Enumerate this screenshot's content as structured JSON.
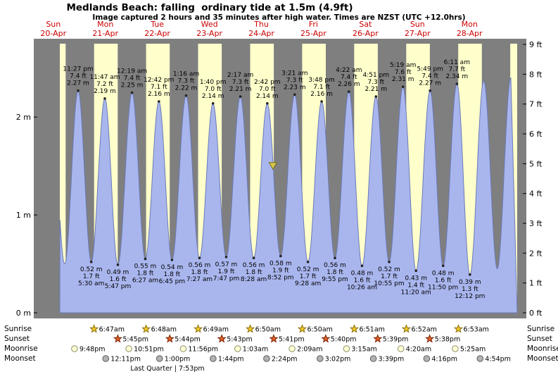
{
  "header": {
    "title": "Medlands Beach: falling  ordinary tide at 1.5m (4.9ft)",
    "subtitle": "Image captured 2 hours and 35 minutes after high water. Times are NZST (UTC +12.0hrs)"
  },
  "days": [
    {
      "dow": "Sun",
      "date": "20-Apr"
    },
    {
      "dow": "Mon",
      "date": "21-Apr"
    },
    {
      "dow": "Tue",
      "date": "22-Apr"
    },
    {
      "dow": "Wed",
      "date": "23-Apr"
    },
    {
      "dow": "Thu",
      "date": "24-Apr"
    },
    {
      "dow": "Fri",
      "date": "25-Apr"
    },
    {
      "dow": "Sat",
      "date": "26-Apr"
    },
    {
      "dow": "Sun",
      "date": "27-Apr"
    },
    {
      "dow": "Mon",
      "date": "28-Apr"
    }
  ],
  "axes": {
    "left": [
      "2 m",
      "1 m",
      "0 m"
    ],
    "right": [
      "9 ft",
      "8 ft",
      "7 ft",
      "6 ft",
      "5 ft",
      "4 ft",
      "3 ft",
      "2 ft",
      "1 ft",
      "0 ft"
    ]
  },
  "colors": {
    "day_band": "#ffffcc",
    "night_band": "#7f7f7f",
    "tide_fill": "#a9b6ee",
    "tide_stroke": "#6b7ab8",
    "day_label": "#cc0000",
    "marker": "#d8c546",
    "marker_edge": "#77701c"
  },
  "chart_data": {
    "type": "area",
    "title": "Medlands Beach tide curve, 20-Apr to 28-Apr",
    "x_unit": "time (NZST)",
    "y_left_label_unit": "m",
    "y_right_label_unit": "ft",
    "ylim_ft": [
      0,
      9
    ],
    "current_marker": {
      "day": 4,
      "time": "5:17 pm",
      "m": 1.5
    },
    "events": [
      {
        "type": "high",
        "day": 0,
        "time": "11:27 pm",
        "ft": 7.4,
        "m": 2.27
      },
      {
        "type": "low",
        "day": 1,
        "time": "5:30 am",
        "ft": 1.7,
        "m": 0.52
      },
      {
        "type": "high",
        "day": 1,
        "time": "11:47 am",
        "ft": 7.2,
        "m": 2.19
      },
      {
        "type": "low",
        "day": 1,
        "time": "5:47 pm",
        "ft": 1.6,
        "m": 0.49
      },
      {
        "type": "high",
        "day": 2,
        "time": "12:19 am",
        "ft": 7.4,
        "m": 2.25
      },
      {
        "type": "low",
        "day": 2,
        "time": "6:27 am",
        "ft": 1.8,
        "m": 0.55
      },
      {
        "type": "high",
        "day": 2,
        "time": "12:42 pm",
        "ft": 7.1,
        "m": 2.16
      },
      {
        "type": "low",
        "day": 2,
        "time": "6:45 pm",
        "ft": 1.8,
        "m": 0.54
      },
      {
        "type": "high",
        "day": 3,
        "time": "1:16 am",
        "ft": 7.3,
        "m": 2.22
      },
      {
        "type": "low",
        "day": 3,
        "time": "7:27 am",
        "ft": 1.8,
        "m": 0.56
      },
      {
        "type": "high",
        "day": 3,
        "time": "1:40 pm",
        "ft": 7.0,
        "m": 2.14
      },
      {
        "type": "low",
        "day": 3,
        "time": "7:47 pm",
        "ft": 1.9,
        "m": 0.57
      },
      {
        "type": "high",
        "day": 4,
        "time": "2:17 am",
        "ft": 7.3,
        "m": 2.21
      },
      {
        "type": "low",
        "day": 4,
        "time": "8:28 am",
        "ft": 1.8,
        "m": 0.56
      },
      {
        "type": "high",
        "day": 4,
        "time": "2:42 pm",
        "ft": 7.0,
        "m": 2.14
      },
      {
        "type": "low",
        "day": 4,
        "time": "8:52 pm",
        "ft": 1.9,
        "m": 0.58
      },
      {
        "type": "high",
        "day": 5,
        "time": "3:21 am",
        "ft": 7.3,
        "m": 2.23
      },
      {
        "type": "low",
        "day": 5,
        "time": "9:28 am",
        "ft": 1.7,
        "m": 0.52
      },
      {
        "type": "high",
        "day": 5,
        "time": "3:48 pm",
        "ft": 7.1,
        "m": 2.16
      },
      {
        "type": "low",
        "day": 5,
        "time": "9:55 pm",
        "ft": 1.8,
        "m": 0.56
      },
      {
        "type": "high",
        "day": 6,
        "time": "4:22 am",
        "ft": 7.4,
        "m": 2.26
      },
      {
        "type": "low",
        "day": 6,
        "time": "10:26 am",
        "ft": 1.6,
        "m": 0.48
      },
      {
        "type": "high",
        "day": 6,
        "time": "4:51 pm",
        "ft": 7.3,
        "m": 2.21
      },
      {
        "type": "low",
        "day": 6,
        "time": "10:55 pm",
        "ft": 1.7,
        "m": 0.52
      },
      {
        "type": "high",
        "day": 7,
        "time": "5:19 am",
        "ft": 7.6,
        "m": 2.31
      },
      {
        "type": "low",
        "day": 7,
        "time": "11:20 am",
        "ft": 1.4,
        "m": 0.43
      },
      {
        "type": "high",
        "day": 7,
        "time": "5:49 pm",
        "ft": 7.4,
        "m": 2.27
      },
      {
        "type": "low",
        "day": 7,
        "time": "11:50 pm",
        "ft": 1.6,
        "m": 0.48
      },
      {
        "type": "high",
        "day": 8,
        "time": "6:11 am",
        "ft": 7.7,
        "m": 2.34
      },
      {
        "type": "low",
        "day": 8,
        "time": "12:12 pm",
        "ft": 1.3,
        "m": 0.39
      }
    ],
    "edge_events": [
      {
        "day": 0,
        "time": "11:00 am",
        "m": 2.2
      },
      {
        "day": 0,
        "time": "5:15 pm",
        "m": 0.5
      },
      {
        "day": 8,
        "time": "6:35 pm",
        "m": 2.37
      },
      {
        "day": 9,
        "time": "12:48 am",
        "m": 0.45
      },
      {
        "day": 9,
        "time": "7:05 am",
        "m": 2.4
      }
    ]
  },
  "astro": {
    "rows": [
      {
        "key": "sunrise",
        "label": "Sunrise",
        "icon": "star",
        "icon_color": "#f2ca30",
        "icon_edge": "#8a6d00",
        "entries": [
          {
            "day": 1,
            "time": "6:47am"
          },
          {
            "day": 2,
            "time": "6:48am"
          },
          {
            "day": 3,
            "time": "6:49am"
          },
          {
            "day": 4,
            "time": "6:50am"
          },
          {
            "day": 5,
            "time": "6:50am"
          },
          {
            "day": 6,
            "time": "6:51am"
          },
          {
            "day": 7,
            "time": "6:52am"
          },
          {
            "day": 8,
            "time": "6:53am"
          }
        ]
      },
      {
        "key": "sunset",
        "label": "Sunset",
        "icon": "star",
        "icon_color": "#e0622d",
        "icon_edge": "#7a2000",
        "entries": [
          {
            "day": 1,
            "time": "5:45pm"
          },
          {
            "day": 2,
            "time": "5:44pm"
          },
          {
            "day": 3,
            "time": "5:43pm"
          },
          {
            "day": 4,
            "time": "5:41pm"
          },
          {
            "day": 5,
            "time": "5:40pm"
          },
          {
            "day": 6,
            "time": "5:39pm"
          },
          {
            "day": 7,
            "time": "5:38pm"
          }
        ]
      },
      {
        "key": "moonrise",
        "label": "Moonrise",
        "icon": "circle",
        "icon_color": "#ffffd4",
        "icon_edge": "#8f8f6e",
        "entries": [
          {
            "day": 0,
            "time": "9:48pm"
          },
          {
            "day": 1,
            "time": "10:51pm"
          },
          {
            "day": 2,
            "time": "11:56pm"
          },
          {
            "day": 4,
            "time": "1:03am"
          },
          {
            "day": 5,
            "time": "2:09am"
          },
          {
            "day": 6,
            "time": "3:15am"
          },
          {
            "day": 7,
            "time": "4:20am"
          },
          {
            "day": 8,
            "time": "5:25am"
          }
        ]
      },
      {
        "key": "moonset",
        "label": "Moonset",
        "icon": "circle",
        "icon_color": "#b2b2b2",
        "icon_edge": "#5e5e5e",
        "entries": [
          {
            "day": 1,
            "time": "12:11pm"
          },
          {
            "day": 2,
            "time": "1:00pm"
          },
          {
            "day": 3,
            "time": "1:44pm"
          },
          {
            "day": 4,
            "time": "2:24pm"
          },
          {
            "day": 5,
            "time": "3:02pm"
          },
          {
            "day": 6,
            "time": "3:39pm"
          },
          {
            "day": 7,
            "time": "4:16pm"
          },
          {
            "day": 8,
            "time": "4:54pm"
          }
        ]
      }
    ]
  },
  "footer": {
    "moon_phase": "Last Quarter | 7:53pm"
  }
}
